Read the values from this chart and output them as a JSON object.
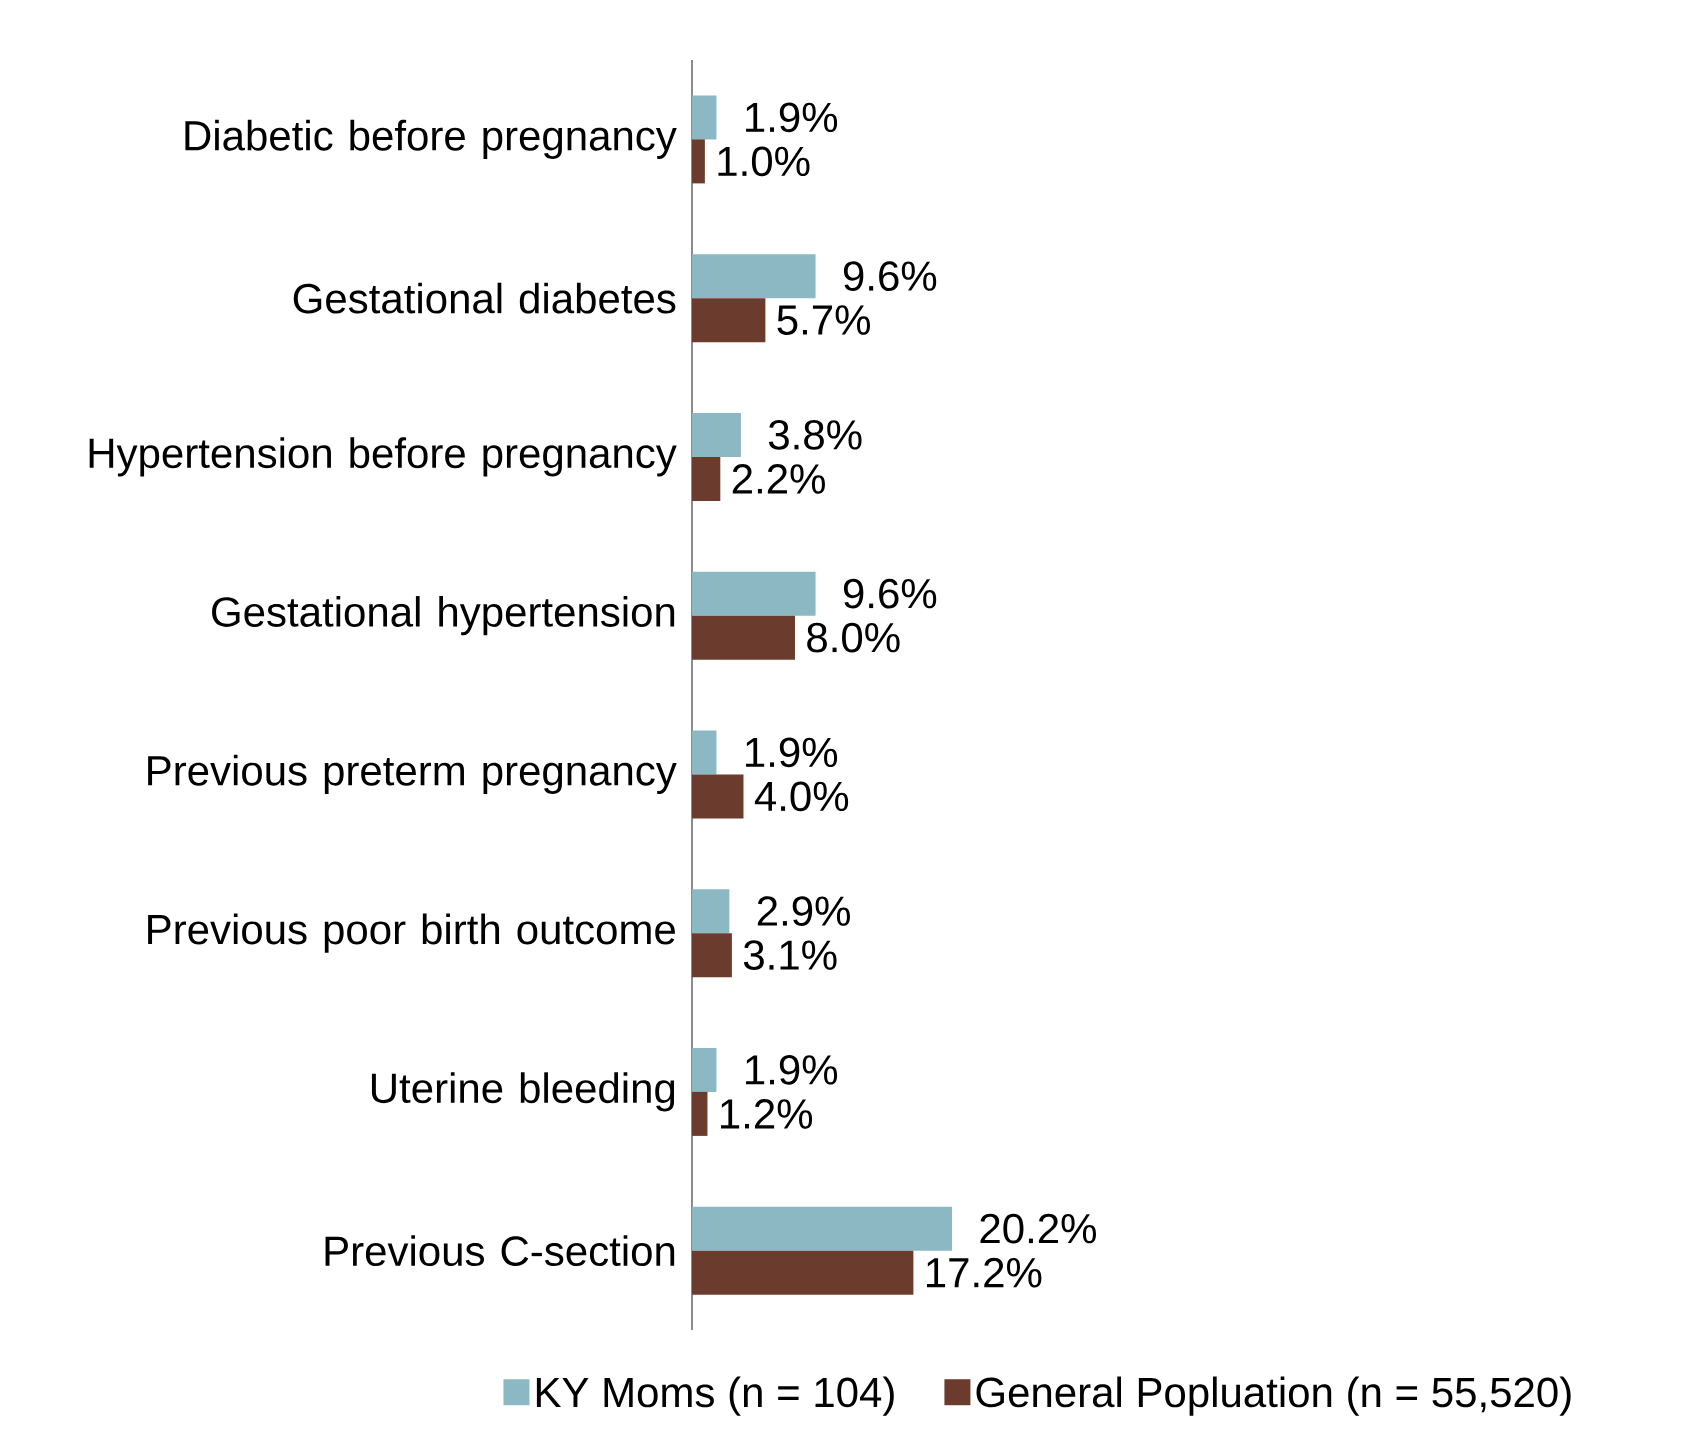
{
  "chart_data": {
    "type": "bar",
    "orientation": "horizontal",
    "categories": [
      "Diabetic before pregnancy",
      "Gestational diabetes",
      "Hypertension before pregnancy",
      "Gestational hypertension",
      "Previous preterm pregnancy",
      "Previous poor birth outcome",
      "Uterine bleeding",
      "Previous C-section"
    ],
    "series": [
      {
        "name": "KY Moms (n = 104)",
        "color": "#8cb8c4",
        "values": [
          1.9,
          9.6,
          3.8,
          9.6,
          1.9,
          2.9,
          1.9,
          20.2
        ],
        "value_labels": [
          "1.9%",
          "9.6%",
          "3.8%",
          "9.6%",
          "1.9%",
          "2.9%",
          "1.9%",
          "20.2%"
        ]
      },
      {
        "name": "General Popluation (n = 55,520)",
        "color": "#6b3b2e",
        "values": [
          1.0,
          5.7,
          2.2,
          8.0,
          4.0,
          3.1,
          1.2,
          17.2
        ],
        "value_labels": [
          "1.0%",
          "5.7%",
          "2.2%",
          "8.0%",
          "4.0%",
          "3.1%",
          "1.2%",
          "17.2%"
        ]
      }
    ],
    "xlim": [
      0,
      20.2
    ],
    "legend": "bottom"
  }
}
